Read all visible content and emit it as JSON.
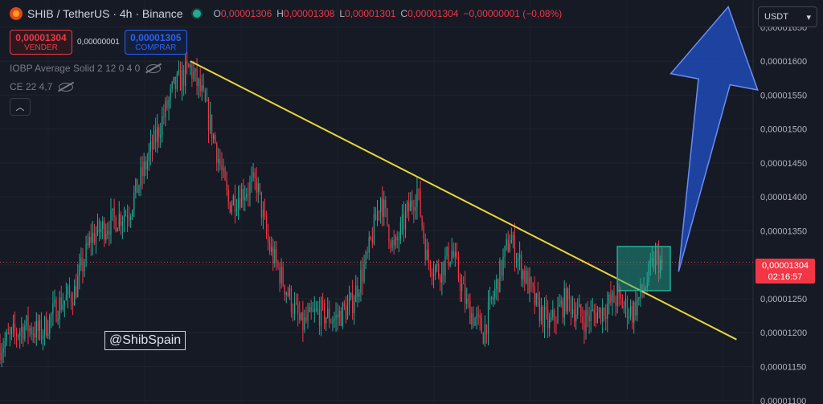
{
  "header": {
    "title": "SHIB / TetherUS · 4h · Binance",
    "ohlc": [
      {
        "k": "O",
        "v": "0,00001306"
      },
      {
        "k": "H",
        "v": "0,00001308"
      },
      {
        "k": "L",
        "v": "0,00001301"
      },
      {
        "k": "C",
        "v": "0,00001304"
      }
    ],
    "change": "−0,00000001 (−0,08%)"
  },
  "trade": {
    "sell_price": "0,00001304",
    "sell_label": "VENDER",
    "spread": "0,00000001",
    "buy_price": "0,00001305",
    "buy_label": "COMPRAR"
  },
  "indicators": [
    {
      "label": "IOBP Average Solid 2 12 0 4 0"
    },
    {
      "label": "CE 22 4,7"
    }
  ],
  "currency": {
    "selected": "USDT"
  },
  "watermark": "@ShibSpain",
  "last_price": {
    "price": "0,00001304",
    "countdown": "02:16:57"
  },
  "colors": {
    "up": "#22ab94",
    "down": "#f23645",
    "trendline": "#e8d63a",
    "arrow": "#2050c8",
    "box": "#22ab94"
  },
  "chart_data": {
    "type": "candlestick",
    "symbol": "SHIB / TetherUS",
    "interval": "4h",
    "exchange": "Binance",
    "y_axis": {
      "range": [
        1.095e-05,
        1.69e-05
      ],
      "ticks": [
        "0,00001650",
        "0,00001600",
        "0,00001550",
        "0,00001500",
        "0,00001450",
        "0,00001400",
        "0,00001350",
        "0,00001300",
        "0,00001250",
        "0,00001200",
        "0,00001150",
        "0,00001100"
      ],
      "tick_values": [
        1.65e-05,
        1.6e-05,
        1.55e-05,
        1.5e-05,
        1.45e-05,
        1.4e-05,
        1.35e-05,
        1.3e-05,
        1.25e-05,
        1.2e-05,
        1.15e-05,
        1.1e-05
      ]
    },
    "trend_path": [
      [
        0,
        1.18e-05
      ],
      [
        15,
        1.21e-05
      ],
      [
        25,
        1.2e-05
      ],
      [
        35,
        1.24e-05
      ],
      [
        45,
        1.26e-05
      ],
      [
        55,
        1.34e-05
      ],
      [
        65,
        1.36e-05
      ],
      [
        78,
        1.38e-05
      ],
      [
        90,
        1.46e-05
      ],
      [
        105,
        1.56e-05
      ],
      [
        115,
        1.59e-05
      ],
      [
        122,
        1.55e-05
      ],
      [
        130,
        1.48e-05
      ],
      [
        138,
        1.39e-05
      ],
      [
        148,
        1.41e-05
      ],
      [
        155,
        1.42e-05
      ],
      [
        162,
        1.33e-05
      ],
      [
        172,
        1.27e-05
      ],
      [
        182,
        1.21e-05
      ],
      [
        192,
        1.23e-05
      ],
      [
        202,
        1.22e-05
      ],
      [
        212,
        1.24e-05
      ],
      [
        222,
        1.31e-05
      ],
      [
        230,
        1.4e-05
      ],
      [
        238,
        1.32e-05
      ],
      [
        245,
        1.37e-05
      ],
      [
        252,
        1.41e-05
      ],
      [
        258,
        1.31e-05
      ],
      [
        265,
        1.29e-05
      ],
      [
        273,
        1.32e-05
      ],
      [
        282,
        1.24e-05
      ],
      [
        292,
        1.2e-05
      ],
      [
        300,
        1.27e-05
      ],
      [
        308,
        1.34e-05
      ],
      [
        316,
        1.29e-05
      ],
      [
        324,
        1.24e-05
      ],
      [
        332,
        1.21e-05
      ],
      [
        342,
        1.25e-05
      ],
      [
        352,
        1.22e-05
      ],
      [
        362,
        1.23e-05
      ],
      [
        372,
        1.25e-05
      ],
      [
        382,
        1.23e-05
      ],
      [
        390,
        1.27e-05
      ],
      [
        396,
        1.31e-05
      ],
      [
        400,
        1.3e-05
      ]
    ],
    "trendline": {
      "x": [
        115,
        445
      ],
      "y": [
        1.6e-05,
        1.19e-05
      ]
    },
    "highlight_box": {
      "x": [
        373,
        405
      ],
      "y": [
        1.262e-05,
        1.327e-05
      ]
    },
    "arrow": {
      "tail": [
        410,
        1.29e-05
      ],
      "head": [
        440,
        1.68e-05
      ]
    },
    "last_price_value": 1.304e-05
  }
}
